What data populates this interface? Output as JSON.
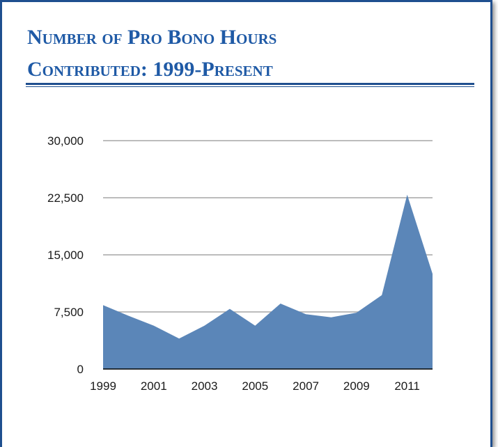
{
  "title_lines": [
    "Number of Pro Bono Hours",
    "Contributed: 1999-Present"
  ],
  "colors": {
    "accent": "#1f5aa6",
    "border": "#1f4f8f",
    "area": "#5b86b8",
    "grid": "#a6a6a6"
  },
  "chart_data": {
    "type": "area",
    "title": "Number of Pro Bono Hours Contributed: 1999-Present",
    "xlabel": "",
    "ylabel": "",
    "x": [
      1999,
      2000,
      2001,
      2002,
      2003,
      2004,
      2005,
      2006,
      2007,
      2008,
      2009,
      2010,
      2011,
      2012
    ],
    "values": [
      8400,
      7000,
      5700,
      4000,
      5700,
      7900,
      5700,
      8600,
      7200,
      6800,
      7400,
      9700,
      22900,
      12500
    ],
    "xticks": [
      "1999",
      "2001",
      "2003",
      "2005",
      "2007",
      "2009",
      "2011"
    ],
    "xtick_values": [
      1999,
      2001,
      2003,
      2005,
      2007,
      2009,
      2011
    ],
    "yticks": [
      "0",
      "7,500",
      "15,000",
      "22,500",
      "30,000"
    ],
    "ytick_values": [
      0,
      7500,
      15000,
      22500,
      30000
    ],
    "ylim": [
      0,
      30000
    ],
    "xlim": [
      1999,
      2012
    ],
    "grid": true,
    "legend": false
  }
}
